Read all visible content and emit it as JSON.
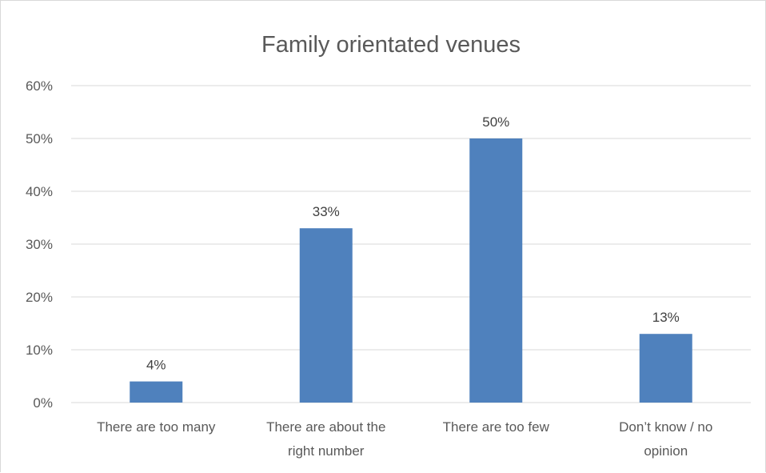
{
  "chart_data": {
    "type": "bar",
    "title": "Family orientated venues",
    "xlabel": "",
    "ylabel": "",
    "categories": [
      "There are too many",
      "There are about the right number",
      "There are too few",
      "Don’t know / no opinion"
    ],
    "category_lines": [
      [
        "There are too many"
      ],
      [
        "There are about the",
        "right number"
      ],
      [
        "There are too few"
      ],
      [
        "Don’t know / no",
        "opinion"
      ]
    ],
    "values": [
      4,
      33,
      50,
      13
    ],
    "value_labels": [
      "4%",
      "33%",
      "50%",
      "13%"
    ],
    "ylim": [
      0,
      60
    ],
    "yticks": [
      0,
      10,
      20,
      30,
      40,
      50,
      60
    ],
    "ytick_labels": [
      "0%",
      "10%",
      "20%",
      "30%",
      "40%",
      "50%",
      "60%"
    ],
    "grid": true,
    "legend": "none",
    "bar_color": "#4f81bd",
    "grid_color": "#d9d9d9",
    "text_color": "#595959"
  }
}
